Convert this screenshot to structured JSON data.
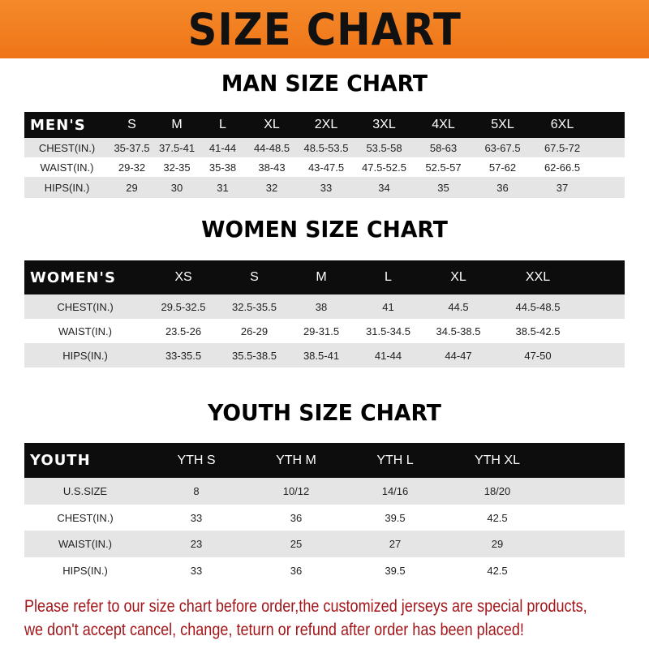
{
  "banner": {
    "title": "SIZE CHART",
    "color": "#f07a1e"
  },
  "men": {
    "title": "MAN SIZE CHART",
    "header": [
      "MEN'S",
      "S",
      "M",
      "L",
      "XL",
      "2XL",
      "3XL",
      "4XL",
      "5XL",
      "6XL"
    ],
    "rows": [
      [
        "CHEST(IN.)",
        "35-37.5",
        "37.5-41",
        "41-44",
        "44-48.5",
        "48.5-53.5",
        "53.5-58",
        "58-63",
        "63-67.5",
        "67.5-72"
      ],
      [
        "WAIST(IN.)",
        "29-32",
        "32-35",
        "35-38",
        "38-43",
        "43-47.5",
        "47.5-52.5",
        "52.5-57",
        "57-62",
        "62-66.5"
      ],
      [
        "HIPS(IN.)",
        "29",
        "30",
        "31",
        "32",
        "33",
        "34",
        "35",
        "36",
        "37"
      ]
    ]
  },
  "women": {
    "title": "WOMEN SIZE CHART",
    "header": [
      "WOMEN'S",
      "XS",
      "S",
      "M",
      "L",
      "XL",
      "XXL"
    ],
    "rows": [
      [
        "CHEST(IN.)",
        "29.5-32.5",
        "32.5-35.5",
        "38",
        "41",
        "44.5",
        "44.5-48.5"
      ],
      [
        "WAIST(IN.)",
        "23.5-26",
        "26-29",
        "29-31.5",
        "31.5-34.5",
        "34.5-38.5",
        "38.5-42.5"
      ],
      [
        "HIPS(IN.)",
        "33-35.5",
        "35.5-38.5",
        "38.5-41",
        "41-44",
        "44-47",
        "47-50"
      ]
    ]
  },
  "youth": {
    "title": "YOUTH SIZE CHART",
    "header": [
      "YOUTH",
      "YTH S",
      "YTH M",
      "YTH L",
      "YTH XL"
    ],
    "rows": [
      [
        "U.S.SIZE",
        "8",
        "10/12",
        "14/16",
        "18/20"
      ],
      [
        "CHEST(IN.)",
        "33",
        "36",
        "39.5",
        "42.5"
      ],
      [
        "WAIST(IN.)",
        "23",
        "25",
        "27",
        "29"
      ],
      [
        "HIPS(IN.)",
        "33",
        "36",
        "39.5",
        "42.5"
      ]
    ]
  },
  "notice": {
    "line1": "Please refer to our size chart before order,the customized jerseys are special products,",
    "line2": "we don't accept cancel, change, teturn or refund after order has been placed!",
    "color": "#a3161a"
  }
}
